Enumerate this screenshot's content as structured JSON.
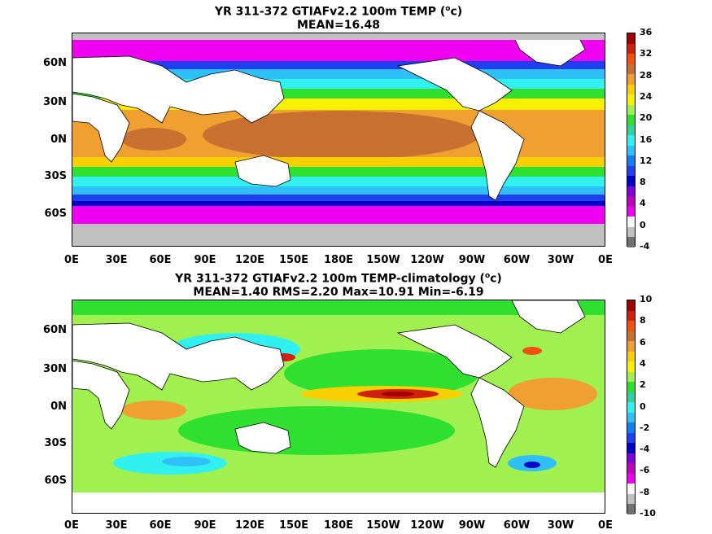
{
  "panels": [
    {
      "title_line1_pre": "YR 311-372 GTIAFv2.2 100m TEMP (",
      "title_sup": "o",
      "title_line1_post": "c)",
      "title_line2": "MEAN=16.48",
      "colorbar": {
        "ticks": [
          "36",
          "32",
          "28",
          "24",
          "20",
          "16",
          "12",
          "8",
          "4",
          "0",
          "-4"
        ],
        "colors": [
          "#a00000",
          "#d02010",
          "#f05010",
          "#c87030",
          "#f0a030",
          "#f8d000",
          "#f8f000",
          "#a0f050",
          "#30e030",
          "#30d0a0",
          "#30f0f0",
          "#30c0f8",
          "#1080f0",
          "#2040f0",
          "#0000c8",
          "#8000d8",
          "#c000c0",
          "#f000f0",
          "#f8f8f8",
          "#c0c0c0",
          "#707070"
        ]
      }
    },
    {
      "title_line1_pre": "YR 311-372 GTIAFv2.2 100m TEMP-climatology (",
      "title_sup": "o",
      "title_line1_post": "c)",
      "title_line2": "MEAN=1.40   RMS=2.20   Max=10.91   Min=-6.19",
      "colorbar": {
        "ticks": [
          "10",
          "8",
          "6",
          "4",
          "2",
          "0",
          "-2",
          "-4",
          "-6",
          "-8",
          "-10"
        ],
        "colors": [
          "#a00000",
          "#d02010",
          "#f05010",
          "#c87030",
          "#f0a030",
          "#f8d000",
          "#f8f000",
          "#a0f050",
          "#30e030",
          "#30d0a0",
          "#30f0f0",
          "#30c0f8",
          "#1080f0",
          "#2040f0",
          "#0000c8",
          "#8000d8",
          "#c000c0",
          "#f000f0",
          "#f8f8f8",
          "#c0c0c0",
          "#707070"
        ]
      }
    }
  ],
  "y_tick_labels": [
    "60N",
    "30N",
    "0N",
    "30S",
    "60S"
  ],
  "x_tick_labels": [
    "0E",
    "30E",
    "60E",
    "90E",
    "120E",
    "150E",
    "180E",
    "150W",
    "120W",
    "90W",
    "60W",
    "30W",
    "0E"
  ]
}
